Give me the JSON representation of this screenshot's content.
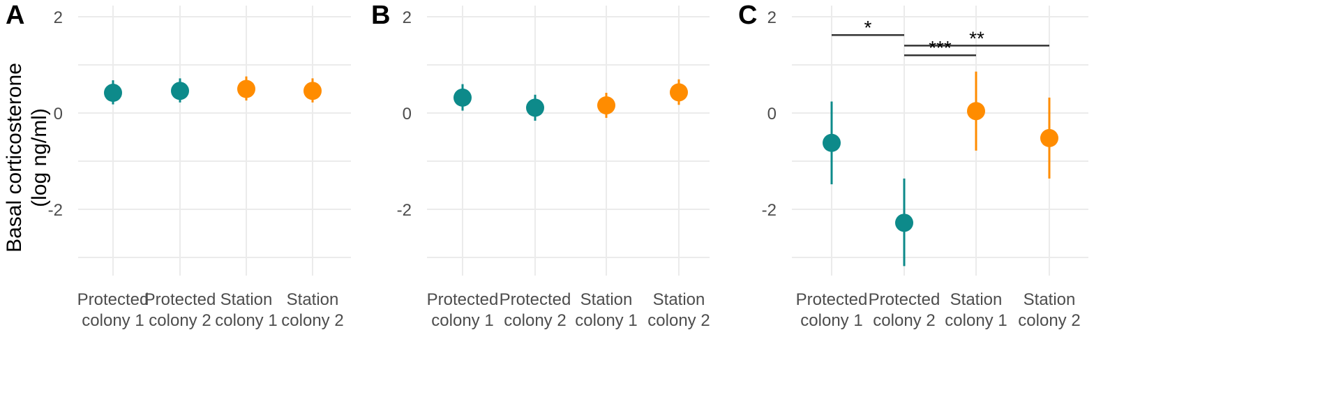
{
  "chart_data": {
    "type": "scatter",
    "ylabel": "Basal corticosterone",
    "ylabel_unit": "(log ng/ml)",
    "ylim": [
      -3.6,
      2.2
    ],
    "yticks": [
      2,
      0,
      -2
    ],
    "categories": [
      [
        "Protected",
        "colony 1"
      ],
      [
        "Protected",
        "colony 2"
      ],
      [
        "Station",
        "colony 1"
      ],
      [
        "Station",
        "colony 2"
      ]
    ],
    "colors": {
      "protected": "#0d8a8a",
      "station": "#ff8c00"
    },
    "point_colors": [
      "protected",
      "protected",
      "station",
      "station"
    ],
    "panels": [
      {
        "label": "A",
        "values": [
          0.42,
          0.46,
          0.5,
          0.46
        ],
        "lower": [
          0.18,
          0.22,
          0.26,
          0.22
        ],
        "upper": [
          0.68,
          0.72,
          0.76,
          0.72
        ],
        "significance": []
      },
      {
        "label": "B",
        "values": [
          0.32,
          0.11,
          0.16,
          0.43
        ],
        "lower": [
          0.05,
          -0.16,
          -0.1,
          0.17
        ],
        "upper": [
          0.6,
          0.38,
          0.42,
          0.7
        ],
        "significance": []
      },
      {
        "label": "C",
        "values": [
          -0.62,
          -2.28,
          0.04,
          -0.52
        ],
        "lower": [
          -1.48,
          -3.18,
          -0.78,
          -1.36
        ],
        "upper": [
          0.24,
          -1.36,
          0.86,
          0.32
        ],
        "significance": [
          {
            "from": 0,
            "to": 1,
            "y": 1.62,
            "label": "*"
          },
          {
            "from": 1,
            "to": 3,
            "y": 1.4,
            "label": "**"
          },
          {
            "from": 1,
            "to": 2,
            "y": 1.2,
            "label": "***"
          }
        ]
      }
    ]
  }
}
